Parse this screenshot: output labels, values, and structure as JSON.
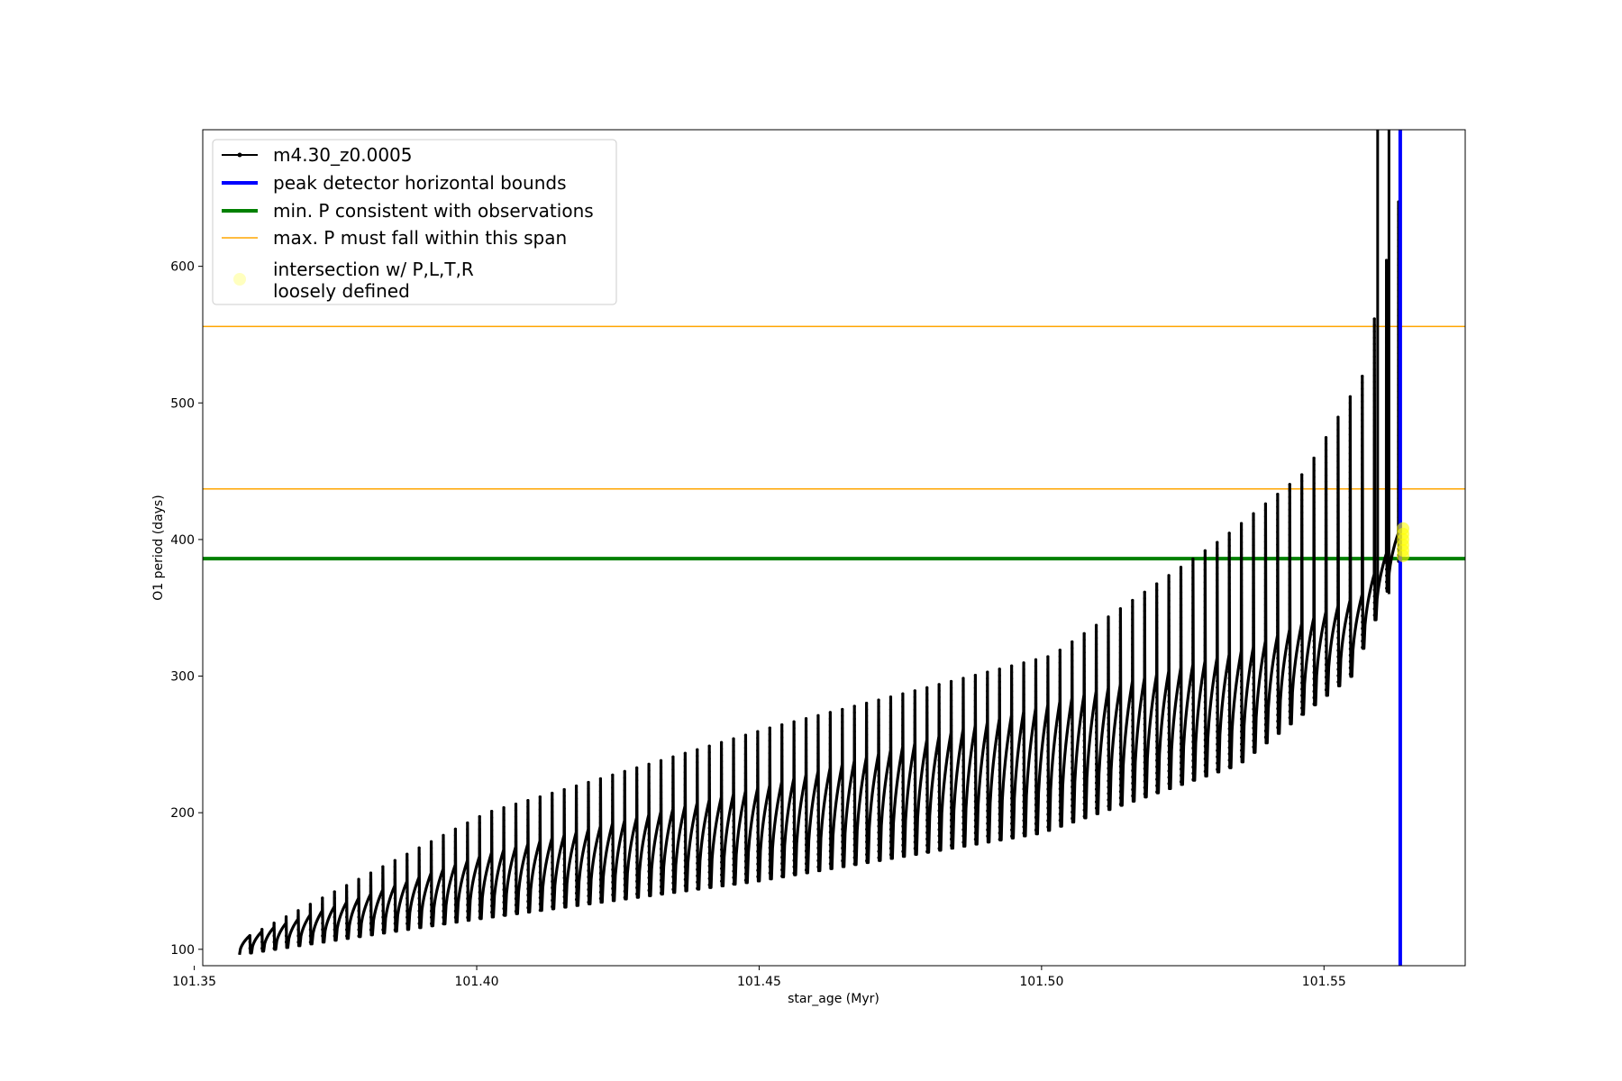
{
  "chart_data": {
    "type": "line",
    "title": "",
    "xlabel": "star_age (Myr)",
    "ylabel": "O1 period (days)",
    "xlim": [
      101.3515,
      101.575
    ],
    "ylim": [
      88,
      700
    ],
    "xticks": [
      101.35,
      101.4,
      101.45,
      101.5,
      101.55
    ],
    "xtick_labels": [
      "101.35",
      "101.40",
      "101.45",
      "101.50",
      "101.55"
    ],
    "yticks": [
      100,
      200,
      300,
      400,
      500,
      600
    ],
    "ytick_labels": [
      "100",
      "200",
      "300",
      "400",
      "500",
      "600"
    ],
    "grid": false,
    "legend_position": "top-left",
    "series": [
      {
        "name": "m4.30_z0.0005",
        "color": "#000000",
        "marker": "dot",
        "pulse_model": {
          "age_start": 101.358,
          "age_end": 101.5635,
          "pulse_count": 96,
          "min_period": [
            [
              101.358,
              96
            ],
            [
              101.4,
              122
            ],
            [
              101.45,
              150
            ],
            [
              101.5,
              185
            ],
            [
              101.535,
              235
            ],
            [
              101.555,
              300
            ],
            [
              101.5635,
              383
            ]
          ],
          "max_period": [
            [
              101.358,
              110
            ],
            [
              101.4,
              170
            ],
            [
              101.45,
              220
            ],
            [
              101.5,
              280
            ],
            [
              101.535,
              320
            ],
            [
              101.555,
              360
            ],
            [
              101.5635,
              420
            ]
          ],
          "spike_top": [
            [
              101.358,
              110
            ],
            [
              101.4,
              200
            ],
            [
              101.45,
              262
            ],
            [
              101.5,
              315
            ],
            [
              101.53,
              400
            ],
            [
              101.545,
              450
            ],
            [
              101.555,
              520
            ],
            [
              101.5615,
              650
            ]
          ],
          "tall_spikes_age": [
            101.5595,
            101.5615
          ]
        }
      }
    ],
    "vertical_lines": [
      {
        "name": "peak detector horizontal bounds",
        "x": 101.5635,
        "color": "#0000ff"
      }
    ],
    "horizontal_lines": [
      {
        "name": "min. P consistent with observations",
        "y": 386,
        "color": "#008000"
      },
      {
        "name": "max. P must fall within this span",
        "y": 437,
        "color": "#ffa500"
      },
      {
        "name": "max. P must fall within this span",
        "y": 556,
        "color": "#ffa500"
      }
    ],
    "highlight_points": {
      "name": "intersection w/ P,L,T,R\nloosely defined",
      "color": "#ffff00",
      "x": 101.564,
      "y": [
        388,
        392,
        396,
        400,
        404,
        408
      ]
    },
    "legend": [
      {
        "label": "m4.30_z0.0005",
        "style": "line-dot",
        "color": "#000000"
      },
      {
        "label": "peak detector horizontal bounds",
        "style": "thick-line",
        "color": "#0000ff"
      },
      {
        "label": "min. P consistent with observations",
        "style": "thick-line",
        "color": "#008000"
      },
      {
        "label": "max. P must fall within this span",
        "style": "thin-line",
        "color": "#ffa500"
      },
      {
        "label": "intersection w/ P,L,T,R",
        "label2": "loosely defined",
        "style": "dot",
        "color": "#ffff00"
      }
    ]
  }
}
